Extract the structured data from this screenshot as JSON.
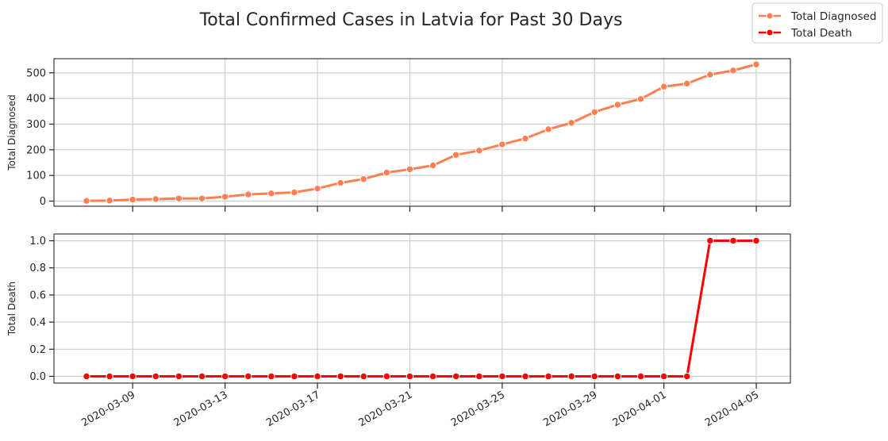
{
  "chart_data": {
    "type": "line",
    "title": "Total Confirmed Cases in Latvia for Past 30 Days",
    "x": [
      "2020-03-07",
      "2020-03-08",
      "2020-03-09",
      "2020-03-10",
      "2020-03-11",
      "2020-03-12",
      "2020-03-13",
      "2020-03-14",
      "2020-03-15",
      "2020-03-16",
      "2020-03-17",
      "2020-03-18",
      "2020-03-19",
      "2020-03-20",
      "2020-03-21",
      "2020-03-22",
      "2020-03-23",
      "2020-03-24",
      "2020-03-25",
      "2020-03-26",
      "2020-03-27",
      "2020-03-28",
      "2020-03-29",
      "2020-03-30",
      "2020-03-31",
      "2020-04-01",
      "2020-04-02",
      "2020-04-03",
      "2020-04-04",
      "2020-04-05"
    ],
    "xticks": [
      "2020-03-09",
      "2020-03-13",
      "2020-03-17",
      "2020-03-21",
      "2020-03-25",
      "2020-03-29",
      "2020-04-01",
      "2020-04-05"
    ],
    "legend_position": "top-right",
    "grid": true,
    "panels": [
      {
        "series_name": "Total Diagnosed",
        "ylabel": "Total Diagnosed",
        "color": "#ff7f50",
        "ylim": [
          -20,
          555
        ],
        "yticks": [
          0,
          100,
          200,
          300,
          400,
          500
        ],
        "ytick_labels": [
          "0",
          "100",
          "200",
          "300",
          "400",
          "500"
        ],
        "values": [
          1,
          2,
          6,
          8,
          10,
          10,
          17,
          26,
          30,
          34,
          49,
          71,
          86,
          111,
          124,
          139,
          180,
          197,
          221,
          244,
          280,
          305,
          347,
          376,
          398,
          446,
          458,
          493,
          509,
          533
        ]
      },
      {
        "series_name": "Total Death",
        "ylabel": "Total Death",
        "color": "#ff0000",
        "ylim": [
          -0.05,
          1.05
        ],
        "yticks": [
          0.0,
          0.2,
          0.4,
          0.6,
          0.8,
          1.0
        ],
        "ytick_labels": [
          "0.0",
          "0.2",
          "0.4",
          "0.6",
          "0.8",
          "1.0"
        ],
        "values": [
          0,
          0,
          0,
          0,
          0,
          0,
          0,
          0,
          0,
          0,
          0,
          0,
          0,
          0,
          0,
          0,
          0,
          0,
          0,
          0,
          0,
          0,
          0,
          0,
          0,
          0,
          0,
          1,
          1,
          1
        ]
      }
    ]
  }
}
